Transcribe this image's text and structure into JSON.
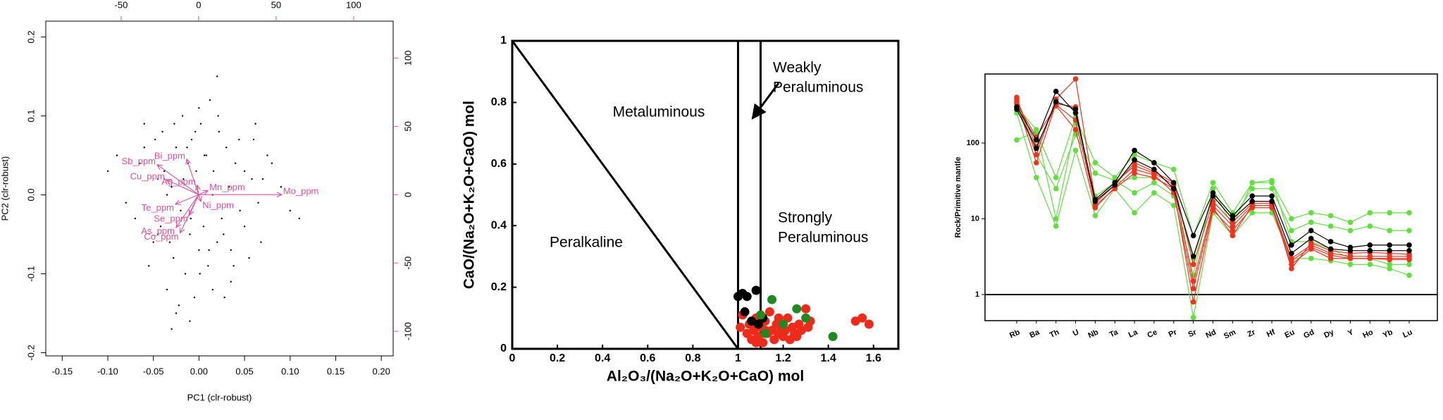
{
  "chart_data": [
    {
      "type": "biplot",
      "xlabel": "PC1 (clr-robust)",
      "ylabel": "PC2 (clr-robust)",
      "xlim": [
        -0.168,
        0.213
      ],
      "ylim": [
        -0.204,
        0.22
      ],
      "xticks": [
        -0.15,
        {
          "value": -0.1,
          "label": "-0.10"
        },
        -0.05,
        {
          "value": 0,
          "label": "0.00"
        },
        0.05,
        {
          "value": 0.1,
          "label": "0.10"
        },
        0.15,
        {
          "value": 0.2,
          "label": "0.20"
        }
      ],
      "yticks": [
        -0.2,
        -0.1,
        {
          "value": 0,
          "label": "0.0"
        },
        0.1,
        0.2
      ],
      "x2lim": [
        -98.6,
        125.5
      ],
      "x2ticks": [
        -50,
        0,
        50,
        100
      ],
      "y2lim": [
        -118,
        127
      ],
      "y2ticks": [
        -100,
        -50,
        0,
        50,
        100
      ],
      "point_color": "#000000",
      "arrow_color": "#e0509a",
      "x": [
        -0.09,
        -0.07,
        -0.06,
        -0.05,
        -0.045,
        -0.04,
        -0.035,
        -0.03,
        -0.028,
        -0.025,
        -0.02,
        -0.018,
        -0.015,
        -0.012,
        -0.01,
        -0.008,
        -0.005,
        -0.003,
        0,
        0.002,
        0.005,
        0.008,
        0.01,
        0.012,
        0.015,
        0.02,
        0.022,
        0.025,
        0.03,
        0.035,
        0.04,
        0.045,
        0.05,
        0.055,
        0.06,
        0.065,
        0.07,
        0.08,
        0.1,
        0.11,
        -0.08,
        -0.065,
        -0.055,
        -0.048,
        -0.042,
        -0.038,
        -0.032,
        -0.027,
        -0.022,
        -0.017,
        -0.013,
        -0.009,
        -0.004,
        0.001,
        0.006,
        0.011,
        0.016,
        0.021,
        0.027,
        0.033,
        0.038,
        0.044,
        0.05,
        0.058,
        0.068,
        0.075,
        0.09,
        -0.1,
        -0.03,
        0.02,
        -0.025,
        0.0,
        0.015,
        -0.045,
        0.035,
        -0.01,
        0.062,
        -0.06,
        0.028,
        -0.035
      ],
      "y": [
        0.05,
        -0.03,
        0.09,
        -0.06,
        0.02,
        0.08,
        -0.12,
        0.01,
        -0.08,
        0.06,
        -0.02,
        0.1,
        -0.1,
        0.04,
        -0.05,
        0.07,
        -0.13,
        0.03,
        -0.07,
        0.09,
        -0.04,
        0.05,
        -0.09,
        0.12,
        0.0,
        -0.06,
        0.08,
        -0.03,
        0.06,
        -0.11,
        0.04,
        -0.02,
        0.03,
        -0.08,
        0.07,
        -0.01,
        0.02,
        0.04,
        -0.02,
        -0.03,
        -0.01,
        0.04,
        -0.09,
        0.07,
        -0.04,
        0.03,
        -0.06,
        0.09,
        -0.14,
        0.02,
        0.06,
        -0.03,
        0.08,
        -0.1,
        0.05,
        -0.07,
        0.03,
        0.1,
        -0.05,
        0.01,
        -0.09,
        0.07,
        -0.04,
        0.02,
        -0.06,
        0.05,
        0.01,
        0.03,
        -0.17,
        0.15,
        -0.15,
        0.11,
        -0.12,
        -0.05,
        -0.07,
        -0.16,
        0.09,
        0.06,
        -0.13,
        0.0
      ],
      "arrows": {
        "names": [
          "Sb_ppm",
          "Bi_ppm",
          "Cu_ppm",
          "Ag_ppm",
          "Mn_ppm",
          "Mo_ppm",
          "Te_ppm",
          "Ni_ppm",
          "Se_ppm",
          "As_ppm",
          "Co_ppm"
        ],
        "x": [
          -26.8,
          -7.7,
          -21,
          -1,
          6,
          53.6,
          -15,
          1.5,
          -6,
          -14.5,
          -12
        ],
        "y": [
          22,
          26,
          11,
          7,
          3,
          0,
          -7,
          -5,
          -15,
          -24,
          -28
        ]
      }
    },
    {
      "type": "scatter",
      "xlabel": "Al₂O₃/(Na₂O+K₂O+CaO) mol",
      "ylabel": "CaO/(Na₂O+K₂O+CaO) mol",
      "xlim": [
        0,
        1.71
      ],
      "ylim": [
        0,
        1
      ],
      "xticks": [
        0,
        0.2,
        0.4,
        0.6,
        0.8,
        1,
        1.2,
        1.4,
        1.6
      ],
      "yticks": [
        0,
        0.2,
        0.4,
        0.6,
        0.8,
        1
      ],
      "lines": [
        {
          "x": [
            0,
            1
          ],
          "y": [
            1,
            0
          ]
        },
        {
          "x": [
            1,
            1
          ],
          "y": [
            0,
            1
          ]
        },
        {
          "x": [
            1.1,
            1.1
          ],
          "y": [
            0,
            1
          ]
        }
      ],
      "regions": [
        [
          "Metaluminous"
        ],
        [
          "Weakly",
          "Peraluminous"
        ],
        [
          "Strongly",
          "Peraluminous"
        ],
        [
          "Peralkaline"
        ]
      ],
      "series": [
        {
          "color": "#ee2a1b",
          "x": [
            1.02,
            1.04,
            1.05,
            1.06,
            1.07,
            1.08,
            1.09,
            1.1,
            1.11,
            1.12,
            1.13,
            1.14,
            1.15,
            1.16,
            1.17,
            1.18,
            1.19,
            1.2,
            1.21,
            1.22,
            1.23,
            1.24,
            1.25,
            1.27,
            1.28,
            1.3,
            1.31,
            1.32,
            1.12,
            1.08,
            1.18,
            1.26,
            1.52,
            1.55,
            1.58,
            1.01
          ],
          "values": [
            0.11,
            0.05,
            0.08,
            0.03,
            0.06,
            0.1,
            0.04,
            0.07,
            0.02,
            0.09,
            0.05,
            0.12,
            0.06,
            0.03,
            0.08,
            0.05,
            0.07,
            0.04,
            0.06,
            0.1,
            0.03,
            0.07,
            0.05,
            0.08,
            0.06,
            0.13,
            0.07,
            0.09,
            0.06,
            0.02,
            0.1,
            0.04,
            0.09,
            0.1,
            0.08,
            0.07
          ]
        },
        {
          "color": "#000000",
          "x": [
            1.0,
            1.02,
            1.04,
            1.08,
            1.06,
            1.09,
            1.03,
            1.11
          ],
          "values": [
            0.17,
            0.18,
            0.17,
            0.19,
            0.09,
            0.08,
            0.12,
            0.1
          ]
        },
        {
          "color": "#1f8a1f",
          "x": [
            1.15,
            1.1,
            1.26,
            1.3,
            1.42,
            1.2,
            1.12
          ],
          "values": [
            0.16,
            0.11,
            0.13,
            0.1,
            0.04,
            0.08,
            0.05
          ]
        }
      ]
    },
    {
      "type": "line",
      "ylabel": "Rock/Primitive mantle",
      "log": true,
      "ylim": [
        0.453,
        815
      ],
      "yticks": [
        1,
        10,
        100
      ],
      "hline": 1,
      "categories": [
        "Rb",
        "Ba",
        "Th",
        "U",
        "Nb",
        "Ta",
        "La",
        "Ce",
        "Pr",
        "Sr",
        "Nd",
        "Sm",
        "Zr",
        "Hf",
        "Eu",
        "Gd",
        "Dy",
        "Y",
        "Ho",
        "Yb",
        "Lu"
      ],
      "series": [
        {
          "color": "#5fe03c",
          "values": [
            110,
            140,
            35,
            220,
            55,
            35,
            70,
            55,
            45,
            6,
            30,
            12,
            30,
            30,
            10,
            12,
            11,
            9,
            12,
            12,
            12
          ]
        },
        {
          "color": "#5fe03c",
          "values": [
            300,
            150,
            10,
            180,
            20,
            30,
            35,
            35,
            25,
            3,
            20,
            10,
            25,
            25,
            7,
            9,
            8,
            7,
            8,
            7,
            7
          ]
        },
        {
          "color": "#5fe03c",
          "values": [
            250,
            35,
            8,
            80,
            11,
            25,
            12,
            22,
            15,
            0.5,
            12,
            6,
            12,
            12,
            3,
            3,
            2.8,
            2.5,
            2.5,
            2.2,
            1.8
          ]
        },
        {
          "color": "#5fe03c",
          "values": [
            350,
            70,
            25,
            130,
            40,
            32,
            22,
            30,
            20,
            1.8,
            25,
            8,
            30,
            32,
            5,
            5,
            4,
            3,
            3,
            2.5,
            2.5
          ]
        },
        {
          "color": "#f0321e",
          "values": [
            400,
            70,
            380,
            700,
            18,
            30,
            50,
            40,
            28,
            1.5,
            15,
            8,
            15,
            15,
            3,
            4.5,
            3.5,
            3.2,
            3.2,
            3.2,
            3.2
          ]
        },
        {
          "color": "#f0321e",
          "values": [
            350,
            55,
            330,
            300,
            15,
            25,
            40,
            35,
            25,
            0.8,
            13,
            7,
            14,
            14,
            2.5,
            4,
            3,
            3,
            3,
            3,
            3
          ]
        },
        {
          "color": "#f0321e",
          "values": [
            380,
            90,
            320,
            200,
            16,
            28,
            55,
            42,
            30,
            2.5,
            17,
            9,
            16,
            16,
            2.2,
            4.8,
            3.8,
            3.5,
            3.6,
            3.5,
            3.4
          ]
        },
        {
          "color": "#f0321e",
          "values": [
            330,
            120,
            310,
            150,
            14,
            26,
            45,
            38,
            22,
            1.2,
            14,
            6,
            15,
            15,
            2.8,
            4.2,
            3.3,
            3.0,
            3.0,
            2.9,
            2.9
          ]
        },
        {
          "color": "#000000",
          "values": [
            300,
            110,
            480,
            250,
            18,
            30,
            80,
            55,
            30,
            6,
            22,
            11,
            20,
            20,
            4.5,
            7,
            5,
            4.2,
            4.5,
            4.5,
            4.5
          ]
        },
        {
          "color": "#000000",
          "values": [
            280,
            85,
            350,
            280,
            17,
            28,
            60,
            45,
            25,
            3.2,
            20,
            10,
            17,
            17,
            3.5,
            5.5,
            4,
            3.8,
            3.8,
            3.8,
            3.8
          ]
        }
      ]
    }
  ]
}
